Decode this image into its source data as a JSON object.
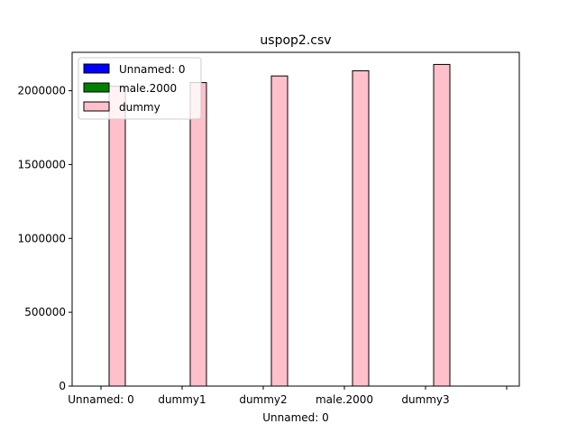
{
  "chart_data": {
    "type": "bar",
    "title": "uspop2.csv",
    "xlabel": "Unnamed: 0",
    "ylabel": "",
    "categories": [
      "Unnamed: 0",
      "dummy1",
      "dummy2",
      "male.2000",
      "dummy3",
      ""
    ],
    "series": [
      {
        "name": "Unnamed: 0",
        "color": "#0000ff",
        "values": [
          0,
          0,
          0,
          0,
          0,
          0
        ]
      },
      {
        "name": "male.2000",
        "color": "#008000",
        "values": [
          0,
          0,
          0,
          0,
          0,
          0
        ]
      },
      {
        "name": "dummy",
        "color": "#ffc0cb",
        "values": [
          2030000,
          2055000,
          2100000,
          2135000,
          2178000,
          0
        ]
      }
    ],
    "ylim": [
      0,
      2260000
    ],
    "yticks": [
      0,
      500000,
      1000000,
      1500000,
      2000000
    ],
    "ytick_labels": [
      "0",
      "500000",
      "1000000",
      "1500000",
      "2000000"
    ],
    "legend_position": "top-left",
    "grid": false
  }
}
